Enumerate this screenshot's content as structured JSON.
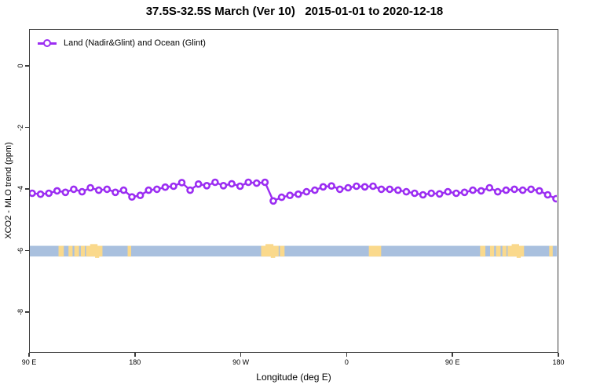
{
  "title": "37.5S-32.5S March (Ver 10)   2015-01-01 to 2020-12-18",
  "legend": {
    "label": "Land (Nadir&Glint) and Ocean (Glint)"
  },
  "axes": {
    "x_label": "Longitude (deg E)",
    "y_label": "XCO2 - MLO trend (ppm)"
  },
  "colors": {
    "series": "#9B2DF2",
    "marker_fill": "#ffffff",
    "ocean": "#A9C0DE",
    "land": "#FAD98C",
    "axis": "#3d3d3d",
    "text": "#000000"
  },
  "chart_data": {
    "type": "line",
    "title": "37.5S-32.5S March (Ver 10)   2015-01-01 to 2020-12-18",
    "xlabel": "Longitude (deg E)",
    "ylabel": "XCO2 - MLO trend (ppm)",
    "legend_position": "top-left",
    "grid": false,
    "xlim": [
      0,
      450
    ],
    "ylim": [
      -9.32,
      1.2
    ],
    "x_ticks": [
      {
        "pos": 0,
        "label": "90 E"
      },
      {
        "pos": 90,
        "label": "180"
      },
      {
        "pos": 180,
        "label": "90 W"
      },
      {
        "pos": 270,
        "label": "0"
      },
      {
        "pos": 360,
        "label": "90 E"
      },
      {
        "pos": 450,
        "label": "180"
      }
    ],
    "y_ticks": [
      {
        "val": 0,
        "label": "0"
      },
      {
        "val": -2,
        "label": "-2"
      },
      {
        "val": -4,
        "label": "-4"
      },
      {
        "val": -6,
        "label": "-6"
      },
      {
        "val": -8,
        "label": "-8"
      }
    ],
    "series": [
      {
        "name": "Land (Nadir&Glint) and Ocean (Glint)",
        "marker": "open-circle",
        "x_start_deg_east_of_90E": 2,
        "x_step_deg": 7.1,
        "values": [
          -4.15,
          -4.18,
          -4.15,
          -4.07,
          -4.12,
          -4.02,
          -4.1,
          -3.97,
          -4.05,
          -4.02,
          -4.12,
          -4.05,
          -4.27,
          -4.22,
          -4.05,
          -4.02,
          -3.95,
          -3.92,
          -3.8,
          -4.05,
          -3.85,
          -3.9,
          -3.79,
          -3.9,
          -3.84,
          -3.92,
          -3.79,
          -3.82,
          -3.79,
          -4.4,
          -4.28,
          -4.22,
          -4.18,
          -4.1,
          -4.05,
          -3.94,
          -3.91,
          -4.02,
          -3.97,
          -3.92,
          -3.94,
          -3.92,
          -4.02,
          -4.02,
          -4.05,
          -4.1,
          -4.15,
          -4.2,
          -4.15,
          -4.17,
          -4.1,
          -4.15,
          -4.12,
          -4.05,
          -4.07,
          -3.97,
          -4.1,
          -4.05,
          -4.02,
          -4.05,
          -4.02,
          -4.07,
          -4.2,
          -4.33
        ]
      }
    ],
    "map_band": {
      "description": "latitude-band strip map 37.5S-32.5S: ocean with land patches",
      "val_top": -5.87,
      "val_bottom": -6.22,
      "land_segments": [
        {
          "from": 24.5,
          "to": 29
        },
        {
          "from": 33,
          "to": 36.5
        },
        {
          "from": 38,
          "to": 42
        },
        {
          "from": 43.5,
          "to": 47
        },
        {
          "from": 48,
          "to": 62,
          "bump": true
        },
        {
          "from": 83.5,
          "to": 86.5
        },
        {
          "from": 197.5,
          "to": 212.5,
          "bump": true
        },
        {
          "from": 213.5,
          "to": 217.5
        },
        {
          "from": 289.5,
          "to": 300
        },
        {
          "from": 384.5,
          "to": 389
        },
        {
          "from": 393,
          "to": 396.5
        },
        {
          "from": 398,
          "to": 402
        },
        {
          "from": 403.5,
          "to": 407
        },
        {
          "from": 408,
          "to": 422,
          "bump": true
        },
        {
          "from": 443.5,
          "to": 446.5
        }
      ]
    }
  }
}
